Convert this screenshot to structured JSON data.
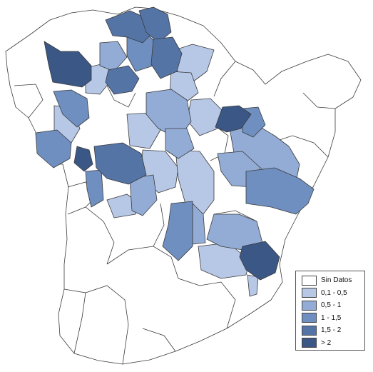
{
  "map": {
    "legend": {
      "items": [
        {
          "label": "Sin Datos",
          "color": "#ffffff"
        },
        {
          "label": "0,1 - 0,5",
          "color": "#b7c8e6"
        },
        {
          "label": "0,5 - 1",
          "color": "#93acd6"
        },
        {
          "label": "1 - 1,5",
          "color": "#6f8fc0"
        },
        {
          "label": "1,5 - 2",
          "color": "#5474a6"
        },
        {
          "label": "> 2",
          "color": "#3a5786"
        }
      ]
    }
  }
}
